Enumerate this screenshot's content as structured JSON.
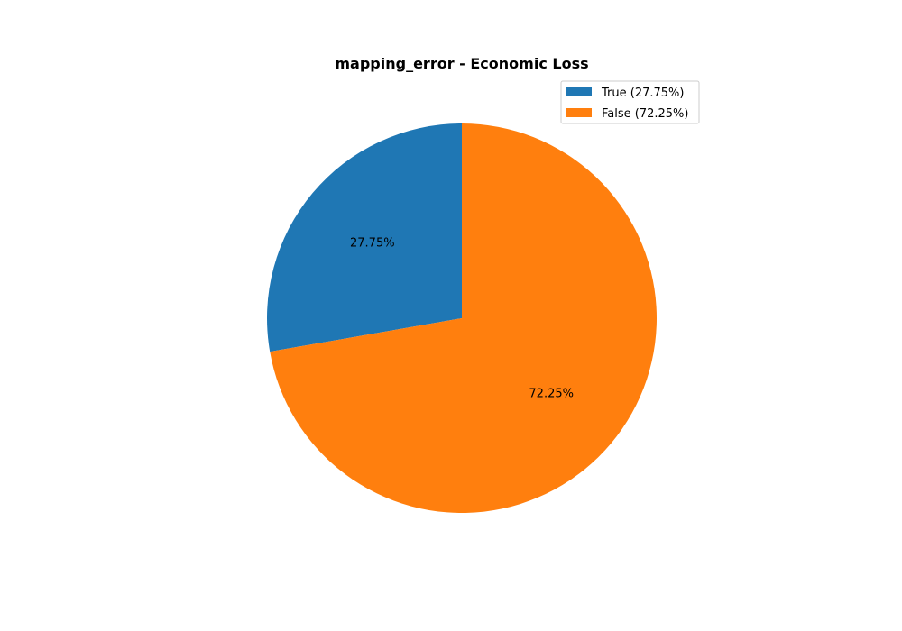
{
  "chart_data": {
    "type": "pie",
    "title": "mapping_error - Economic Loss",
    "start_angle_deg": 90,
    "direction": "counterclockwise",
    "slices": [
      {
        "label": "True",
        "value": 27.75,
        "percent_label": "27.75%",
        "legend_label": "True (27.75%)",
        "color": "#1f77b4"
      },
      {
        "label": "False",
        "value": 72.25,
        "percent_label": "72.25%",
        "legend_label": "False (72.25%)",
        "color": "#ff7f0e"
      }
    ],
    "legend_position": "upper-right"
  }
}
